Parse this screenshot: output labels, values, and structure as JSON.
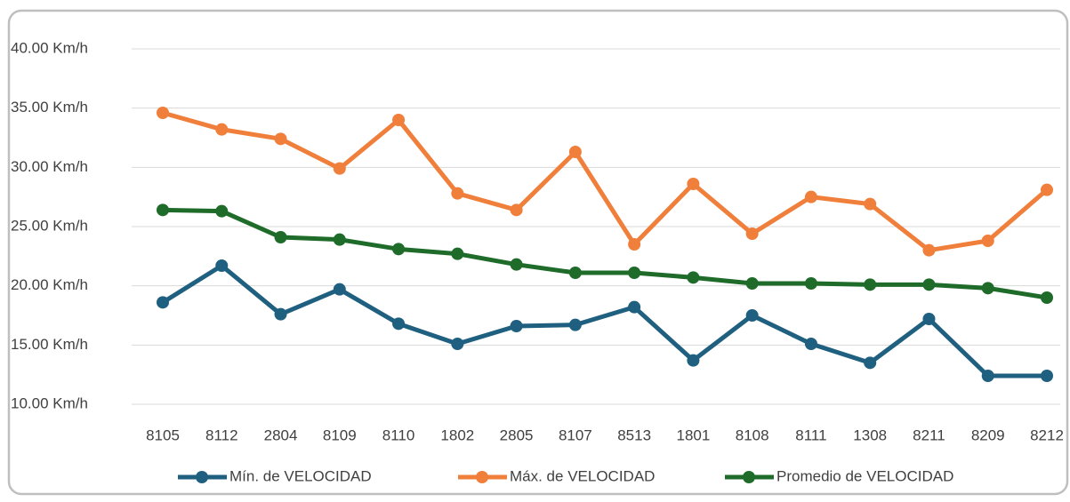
{
  "chart_data": {
    "type": "line",
    "categories": [
      "8105",
      "8112",
      "2804",
      "8109",
      "8110",
      "1802",
      "2805",
      "8107",
      "8513",
      "1801",
      "8108",
      "8111",
      "1308",
      "8211",
      "8209",
      "8212"
    ],
    "series": [
      {
        "name": "Mín. de VELOCIDAD",
        "color": "#1f5f7f",
        "values": [
          18.6,
          21.7,
          17.6,
          19.7,
          16.8,
          15.1,
          16.6,
          16.7,
          18.2,
          13.7,
          17.5,
          15.1,
          13.5,
          17.2,
          12.4,
          12.4
        ]
      },
      {
        "name": "Máx. de VELOCIDAD",
        "color": "#ef7f3a",
        "values": [
          34.6,
          33.2,
          32.4,
          29.9,
          34.0,
          27.8,
          26.4,
          31.3,
          23.5,
          28.6,
          24.4,
          27.5,
          26.9,
          23.0,
          23.8,
          28.1
        ]
      },
      {
        "name": "Promedio de VELOCIDAD",
        "color": "#1e6b2a",
        "values": [
          26.4,
          26.3,
          24.1,
          23.9,
          23.1,
          22.7,
          21.8,
          21.1,
          21.1,
          20.7,
          20.2,
          20.2,
          20.1,
          20.1,
          19.8,
          19.0
        ]
      }
    ],
    "ylim": [
      10,
      40
    ],
    "yticks": [
      {
        "value": 10,
        "label": "10.00 Km/h"
      },
      {
        "value": 15,
        "label": "15.00 Km/h"
      },
      {
        "value": 20,
        "label": "20.00 Km/h"
      },
      {
        "value": 25,
        "label": "25.00 Km/h"
      },
      {
        "value": 30,
        "label": "30.00 Km/h"
      },
      {
        "value": 35,
        "label": "35.00 Km/h"
      },
      {
        "value": 40,
        "label": "40.00 Km/h"
      }
    ],
    "grid": true,
    "legend": "bottom"
  }
}
